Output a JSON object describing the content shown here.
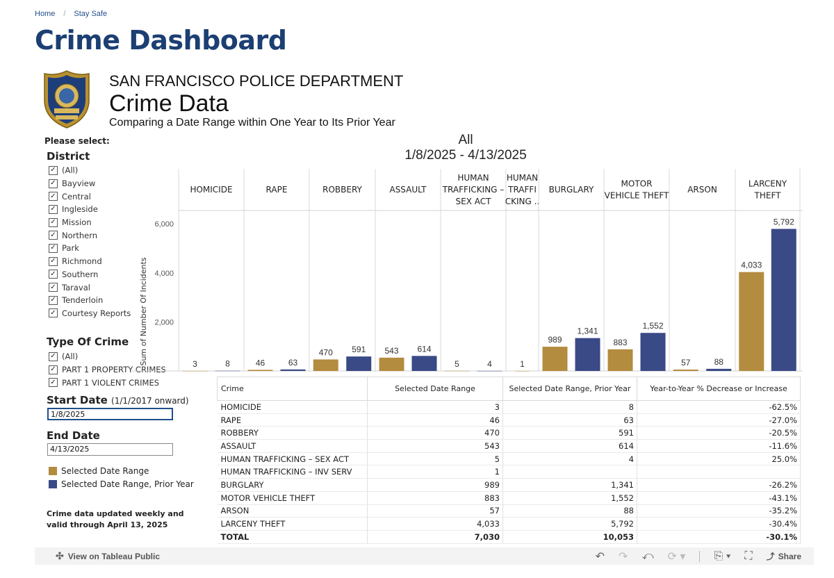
{
  "breadcrumb": {
    "home": "Home",
    "separator": "/",
    "current": "Stay Safe"
  },
  "page_title": "Crime Dashboard",
  "header": {
    "department": "SAN FRANCISCO POLICE DEPARTMENT",
    "title": "Crime Data",
    "subtitle": "Comparing a Date Range within One Year to Its Prior Year",
    "badge_text_top": "SAN FRANCISCO",
    "badge_text_mid": "POLICE"
  },
  "filters": {
    "please_select": "Please select:",
    "district_title": "District",
    "districts": [
      "(All)",
      "Bayview",
      "Central",
      "Ingleside",
      "Mission",
      "Northern",
      "Park",
      "Richmond",
      "Southern",
      "Taraval",
      "Tenderloin",
      "Courtesy Reports"
    ],
    "crime_type_title": "Type Of Crime",
    "crime_types": [
      "(All)",
      "PART 1 PROPERTY CRIMES",
      "PART 1 VIOLENT CRIMES"
    ],
    "start_date_label": "Start Date",
    "start_date_hint": "(1/1/2017 onward)",
    "start_date_value": "1/8/2025",
    "end_date_label": "End Date",
    "end_date_value": "4/13/2025",
    "check_glyph": "✓"
  },
  "legend": [
    {
      "label": "Selected Date Range",
      "color": "#b48c3f"
    },
    {
      "label": "Selected Date Range, Prior Year",
      "color": "#3a4a86"
    }
  ],
  "note": {
    "line1": "Crime data updated weekly and",
    "line2": "valid through April 13, 2025"
  },
  "chart_data": {
    "type": "bar",
    "title": "All",
    "subtitle": "1/8/2025 - 4/13/2025",
    "ylabel": "Sum of Number Of Incidents",
    "ylim": [
      0,
      6400
    ],
    "yticks": [
      2000,
      4000,
      6000
    ],
    "ytick_labels": [
      "2,000",
      "4,000",
      "6,000"
    ],
    "categories": [
      [
        "HOMICIDE"
      ],
      [
        "RAPE"
      ],
      [
        "ROBBERY"
      ],
      [
        "ASSAULT"
      ],
      [
        "HUMAN",
        "TRAFFICKING –",
        "SEX ACT"
      ],
      [
        "HUMAN",
        "TRAFFI",
        "CKING .."
      ],
      [
        "BURGLARY"
      ],
      [
        "MOTOR",
        "VEHICLE THEFT"
      ],
      [
        "ARSON"
      ],
      [
        "LARCENY",
        "THEFT"
      ]
    ],
    "series": [
      {
        "name": "Selected Date Range",
        "color": "#b48c3f",
        "values": [
          3,
          46,
          470,
          543,
          5,
          1,
          989,
          883,
          57,
          4033
        ],
        "labels": [
          "3",
          "46",
          "470",
          "543",
          "5",
          "1",
          "989",
          "883",
          "57",
          "4,033"
        ]
      },
      {
        "name": "Selected Date Range, Prior Year",
        "color": "#3a4a86",
        "values": [
          8,
          63,
          591,
          614,
          4,
          null,
          1341,
          1552,
          88,
          5792
        ],
        "labels": [
          "8",
          "63",
          "591",
          "614",
          "4",
          "",
          "1,341",
          "1,552",
          "88",
          "5,792"
        ]
      }
    ],
    "grid": false
  },
  "table": {
    "headers": [
      "Crime",
      "Selected Date Range",
      "Selected Date Range, Prior Year",
      "Year-to-Year % Decrease or Increase"
    ],
    "rows": [
      [
        "HOMICIDE",
        "3",
        "8",
        "-62.5%"
      ],
      [
        "RAPE",
        "46",
        "63",
        "-27.0%"
      ],
      [
        "ROBBERY",
        "470",
        "591",
        "-20.5%"
      ],
      [
        "ASSAULT",
        "543",
        "614",
        "-11.6%"
      ],
      [
        "HUMAN TRAFFICKING – SEX ACT",
        "5",
        "4",
        "25.0%"
      ],
      [
        "HUMAN TRAFFICKING – INV SERV",
        "1",
        "",
        ""
      ],
      [
        "BURGLARY",
        "989",
        "1,341",
        "-26.2%"
      ],
      [
        "MOTOR VEHICLE THEFT",
        "883",
        "1,552",
        "-43.1%"
      ],
      [
        "ARSON",
        "57",
        "88",
        "-35.2%"
      ],
      [
        "LARCENY THEFT",
        "4,033",
        "5,792",
        "-30.4%"
      ]
    ],
    "total": [
      "TOTAL",
      "7,030",
      "10,053",
      "-30.1%"
    ]
  },
  "toolbar": {
    "view_label": "View on Tableau Public",
    "share_label": "Share"
  }
}
